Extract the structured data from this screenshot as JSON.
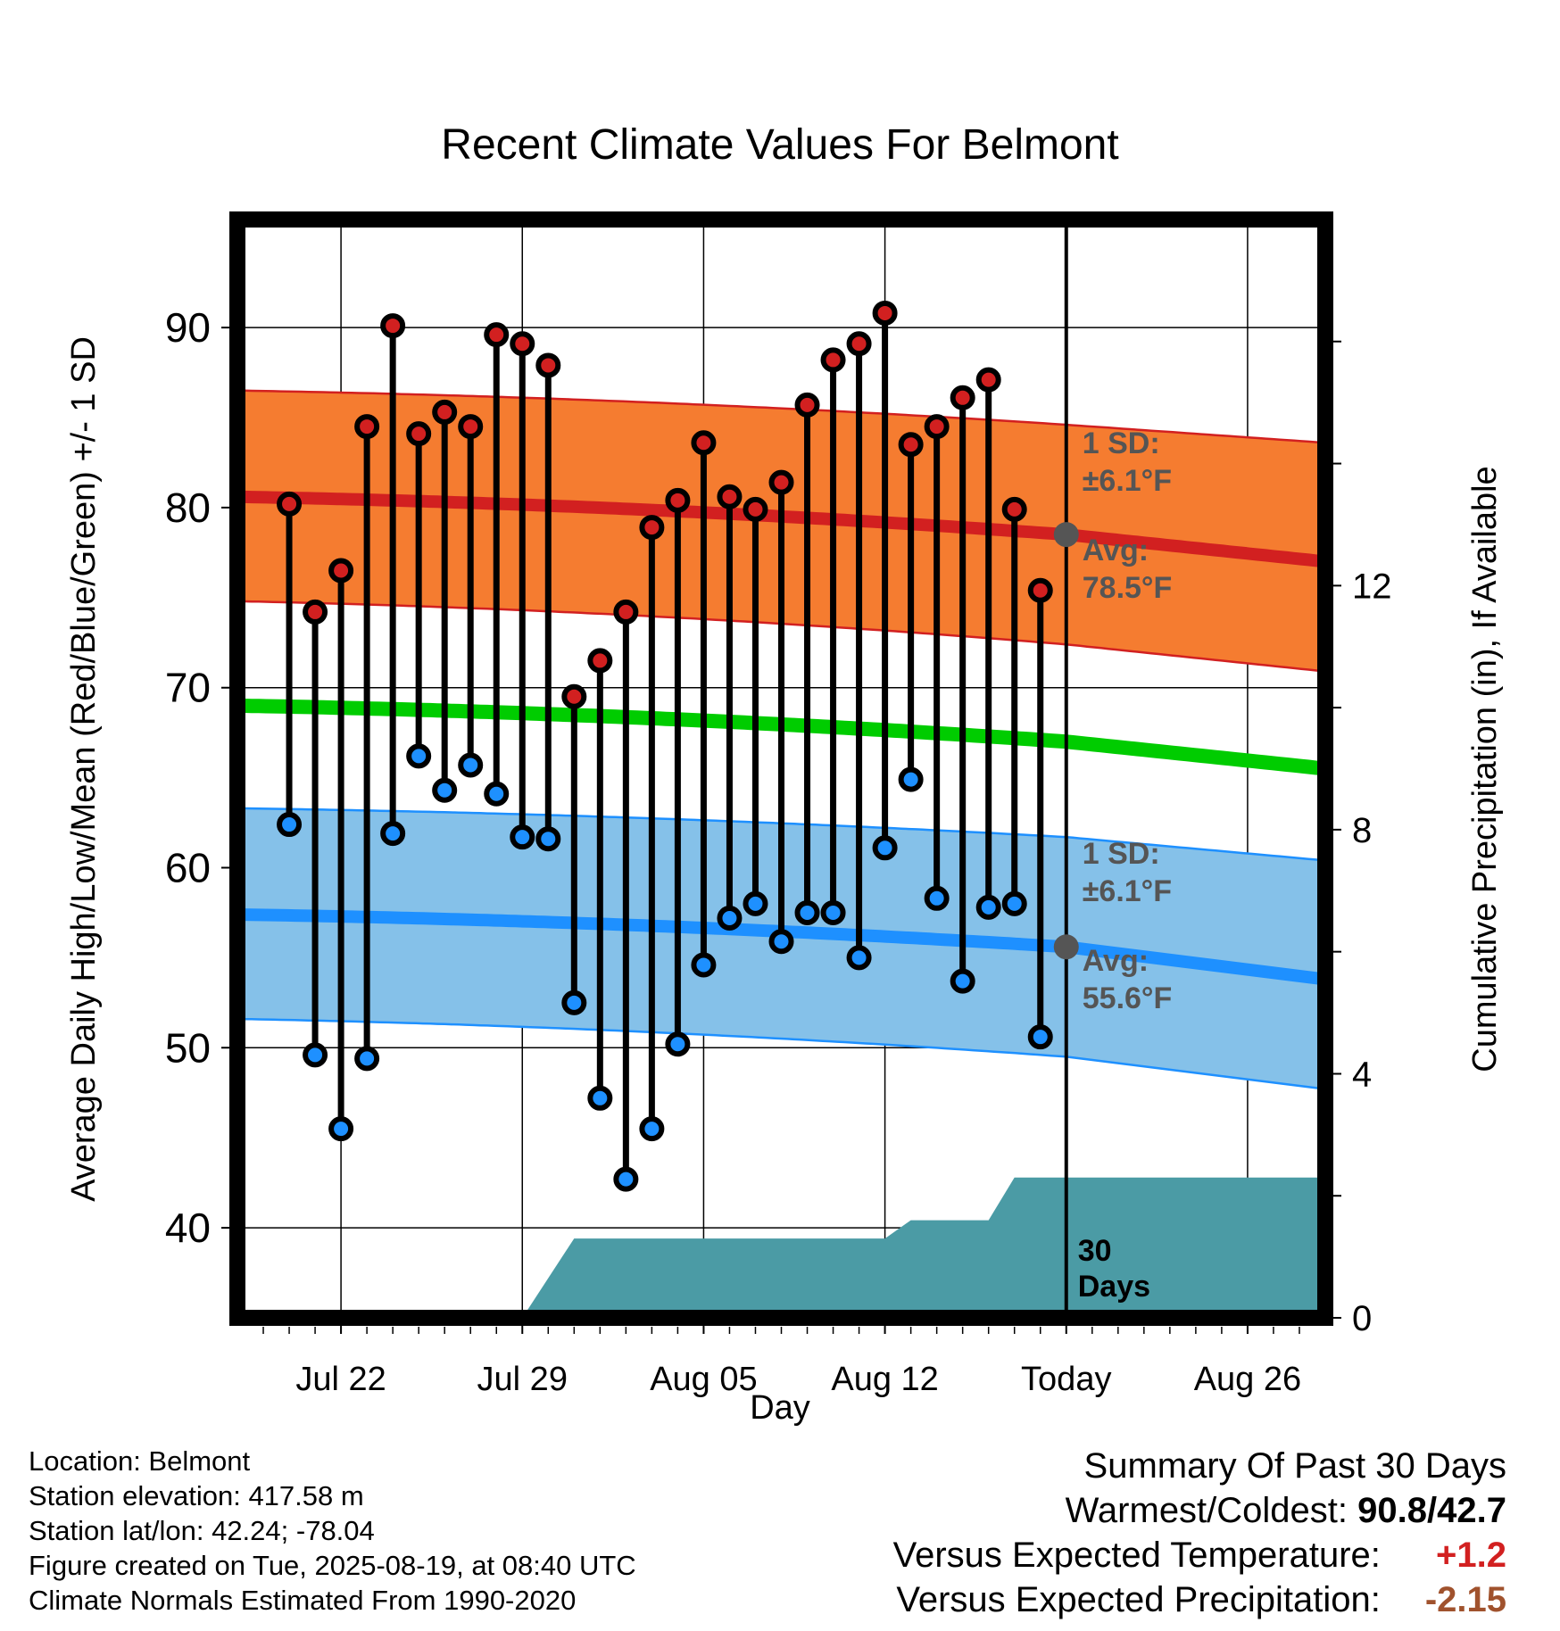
{
  "chart_data": {
    "type": "line",
    "title": "Recent Climate Values For Belmont",
    "xlabel": "Day",
    "ylabel_left": "Average Daily High/Low/Mean (Red/Blue/Green) +/- 1 SD",
    "ylabel_right": "Cumulative Precipitation (in), If Available",
    "x_tick_labels": [
      "Jul 22",
      "Jul 29",
      "Aug 05",
      "Aug 12",
      "Today",
      "Aug 26"
    ],
    "x_range": [
      "2025-07-18",
      "2025-08-29"
    ],
    "ylim_left": [
      35,
      96
    ],
    "yticks_left": [
      40,
      50,
      60,
      70,
      80,
      90
    ],
    "ylim_right": [
      0,
      18
    ],
    "yticks_right": [
      0,
      4,
      8,
      12
    ],
    "today": "2025-08-19",
    "days": [
      "2025-07-20",
      "2025-07-21",
      "2025-07-22",
      "2025-07-23",
      "2025-07-24",
      "2025-07-25",
      "2025-07-26",
      "2025-07-27",
      "2025-07-28",
      "2025-07-29",
      "2025-07-30",
      "2025-07-31",
      "2025-08-01",
      "2025-08-02",
      "2025-08-03",
      "2025-08-04",
      "2025-08-05",
      "2025-08-06",
      "2025-08-07",
      "2025-08-08",
      "2025-08-09",
      "2025-08-10",
      "2025-08-11",
      "2025-08-12",
      "2025-08-13",
      "2025-08-14",
      "2025-08-15",
      "2025-08-16",
      "2025-08-17",
      "2025-08-18"
    ],
    "series": [
      {
        "name": "High",
        "color": "#d22020",
        "values": [
          80.2,
          74.2,
          76.5,
          84.5,
          90.1,
          84.1,
          85.3,
          84.5,
          89.6,
          89.1,
          87.9,
          69.5,
          71.5,
          74.2,
          78.9,
          80.4,
          83.6,
          80.6,
          79.9,
          81.4,
          85.7,
          88.2,
          89.1,
          90.8,
          83.5,
          84.5,
          86.1,
          87.1,
          79.9,
          75.4
        ]
      },
      {
        "name": "Low",
        "color": "#1e90ff",
        "values": [
          62.4,
          49.6,
          45.5,
          49.4,
          61.9,
          66.2,
          64.3,
          65.7,
          64.1,
          61.7,
          61.6,
          52.5,
          47.2,
          42.7,
          45.5,
          50.2,
          54.6,
          57.2,
          58.0,
          55.9,
          57.5,
          57.5,
          55.0,
          61.1,
          64.9,
          58.3,
          53.7,
          57.8,
          58.0,
          50.6
        ]
      }
    ],
    "normals": {
      "high_mean": {
        "start": 80.6,
        "today": 78.5,
        "end": 77.0
      },
      "high_sd_upper": {
        "start": 86.5,
        "today": 84.6,
        "end": 83.6
      },
      "high_sd_lower": {
        "start": 74.8,
        "today": 72.4,
        "end": 70.9
      },
      "mean": {
        "start": 69.0,
        "today": 67.0,
        "end": 65.5
      },
      "low_mean": {
        "start": 57.4,
        "today": 55.6,
        "end": 53.8
      },
      "low_sd_upper": {
        "start": 63.3,
        "today": 61.7,
        "end": 60.4
      },
      "low_sd_lower": {
        "start": 51.6,
        "today": 49.5,
        "end": 47.7
      }
    },
    "precip_cumulative": [
      {
        "date": "2025-07-29",
        "value": 0.0
      },
      {
        "date": "2025-07-31",
        "value": 1.3
      },
      {
        "date": "2025-08-12",
        "value": 1.3
      },
      {
        "date": "2025-08-13",
        "value": 1.6
      },
      {
        "date": "2025-08-16",
        "value": 1.6
      },
      {
        "date": "2025-08-17",
        "value": 2.3
      },
      {
        "date": "2025-08-29",
        "value": 2.3
      }
    ],
    "annotations": {
      "high_sd": {
        "label": "1 SD:",
        "value": "±6.1°F"
      },
      "high_avg": {
        "label": "Avg:",
        "value": "78.5°F"
      },
      "low_sd": {
        "label": "1 SD:",
        "value": "±6.1°F"
      },
      "low_avg": {
        "label": "Avg:",
        "value": "55.6°F"
      },
      "window_number": "30",
      "window_unit": "Days"
    },
    "colors": {
      "high_band": "#f57c30",
      "high_line": "#d22020",
      "mean_line": "#00cc00",
      "low_band": "#85c1e9",
      "low_line": "#1e90ff",
      "precip": "#4b9ba5",
      "annotation_text": "#555555"
    }
  },
  "info": {
    "location": "Location: Belmont",
    "elevation": "Station elevation: 417.58 m",
    "latlon": "Station lat/lon: 42.24; -78.04",
    "created": "Figure created on Tue, 2025-08-19, at 08:40 UTC",
    "normals": "Climate Normals Estimated From 1990-2020"
  },
  "summary": {
    "heading": "Summary Of Past 30 Days",
    "warmest_coldest_label": "Warmest/Coldest:",
    "warmest": "90.8",
    "coldest": "42.7",
    "temp_label": "Versus Expected Temperature:",
    "temp_value": "+1.2",
    "temp_color": "#d22020",
    "precip_label": "Versus Expected Precipitation:",
    "precip_value": "-2.15",
    "precip_color": "#a0522d"
  }
}
